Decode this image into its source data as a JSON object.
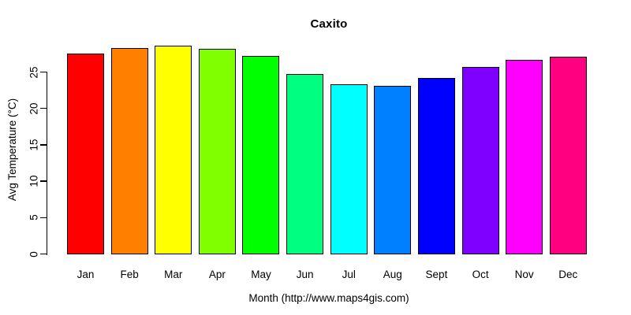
{
  "chart_data": {
    "type": "bar",
    "title": "Caxito",
    "xlabel": "Month (http://www.maps4gis.com)",
    "ylabel": "Avg Temperature (°C)",
    "categories": [
      "Jan",
      "Feb",
      "Mar",
      "Apr",
      "May",
      "Jun",
      "Jul",
      "Aug",
      "Sept",
      "Oct",
      "Nov",
      "Dec"
    ],
    "values": [
      27.5,
      28.3,
      28.6,
      28.2,
      27.2,
      24.7,
      23.3,
      23.1,
      24.2,
      25.7,
      26.7,
      27.1
    ],
    "bar_colors": [
      "#FF0000",
      "#FF8000",
      "#FFFF00",
      "#80FF00",
      "#00FF00",
      "#00FF80",
      "#00FFFF",
      "#0080FF",
      "#0000FF",
      "#8000FF",
      "#FF00FF",
      "#FF0080"
    ],
    "yticks": [
      0,
      5,
      10,
      15,
      20,
      25
    ],
    "ylim": [
      0,
      29
    ],
    "grid": false,
    "legend": "none",
    "bar_border_color": "#000000",
    "background": "#FFFFFF",
    "text_color": "#000000"
  }
}
